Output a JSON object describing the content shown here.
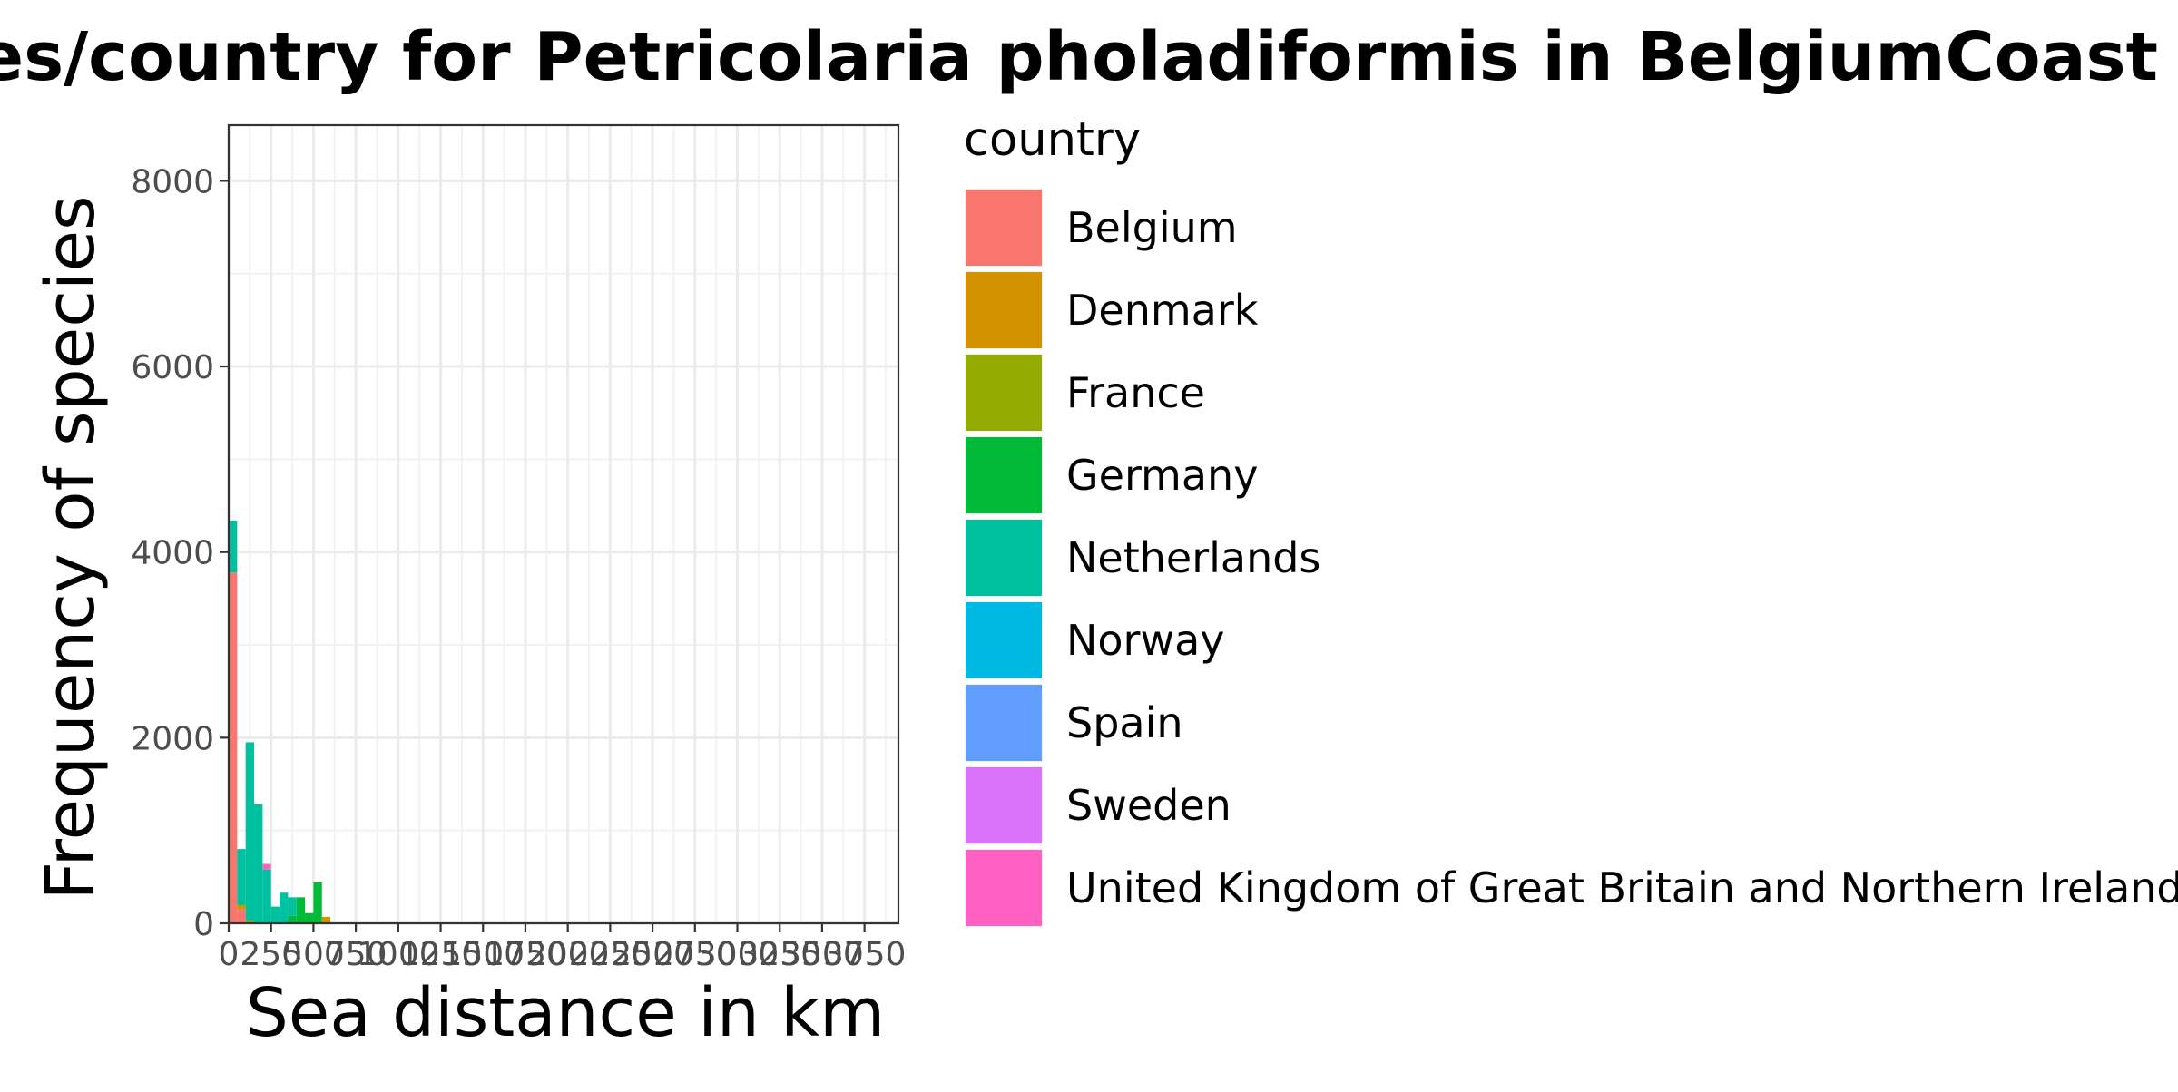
{
  "chart_data": {
    "type": "bar",
    "stacked": true,
    "title": "ces/country for Petricolaria pholadiformis in BelgiumCoast",
    "xlabel": "Sea distance in km",
    "ylabel": "Frequency of species",
    "xlim": [
      0,
      3950
    ],
    "ylim": [
      0,
      8600
    ],
    "x_ticks": [
      0,
      250,
      500,
      750,
      1000,
      1250,
      1500,
      1750,
      2000,
      2250,
      2500,
      2750,
      3000,
      3250,
      3500,
      3750
    ],
    "x_tick_labels": [
      "0",
      "250",
      "500",
      "750",
      "1000",
      "1250",
      "1500",
      "1750",
      "2000",
      "2250",
      "2500",
      "2750",
      "3000",
      "3250",
      "3500",
      "3750"
    ],
    "y_ticks": [
      0,
      2000,
      4000,
      6000,
      8000
    ],
    "y_tick_labels": [
      "0",
      "2000",
      "4000",
      "6000",
      "8000"
    ],
    "grid": true,
    "legend_title": "country",
    "legend_position": "right",
    "bin_width": 50,
    "x": [
      0,
      50,
      100,
      150,
      200,
      250,
      300,
      350,
      400,
      450,
      500,
      550,
      1100
    ],
    "series": [
      {
        "name": "Belgium",
        "color": "#F8766D",
        "values": [
          3780,
          150,
          0,
          0,
          0,
          0,
          0,
          0,
          0,
          0,
          0,
          0,
          0
        ]
      },
      {
        "name": "Denmark",
        "color": "#D39200",
        "values": [
          0,
          30,
          20,
          0,
          0,
          0,
          0,
          0,
          0,
          0,
          0,
          70,
          0
        ]
      },
      {
        "name": "France",
        "color": "#93AA00",
        "values": [
          0,
          20,
          10,
          0,
          0,
          0,
          0,
          0,
          0,
          0,
          0,
          0,
          0
        ]
      },
      {
        "name": "Germany",
        "color": "#00BA38",
        "values": [
          0,
          0,
          0,
          0,
          0,
          0,
          0,
          80,
          280,
          110,
          440,
          0,
          0
        ]
      },
      {
        "name": "Netherlands",
        "color": "#00C19F",
        "values": [
          560,
          600,
          1920,
          1280,
          580,
          180,
          330,
          200,
          0,
          0,
          0,
          0,
          0
        ]
      },
      {
        "name": "Norway",
        "color": "#00B9E3",
        "values": [
          0,
          0,
          0,
          0,
          0,
          0,
          0,
          0,
          0,
          0,
          0,
          0,
          0
        ]
      },
      {
        "name": "Spain",
        "color": "#619CFF",
        "values": [
          0,
          0,
          0,
          0,
          0,
          0,
          0,
          0,
          0,
          0,
          0,
          0,
          0
        ]
      },
      {
        "name": "Sweden",
        "color": "#DB72FB",
        "values": [
          0,
          0,
          0,
          0,
          0,
          0,
          0,
          0,
          0,
          0,
          0,
          0,
          10
        ]
      },
      {
        "name": "United Kingdom of Great Britain and Northern Ireland",
        "color": "#FF61C3",
        "values": [
          0,
          0,
          0,
          0,
          60,
          0,
          0,
          0,
          0,
          0,
          0,
          0,
          0
        ]
      }
    ]
  }
}
